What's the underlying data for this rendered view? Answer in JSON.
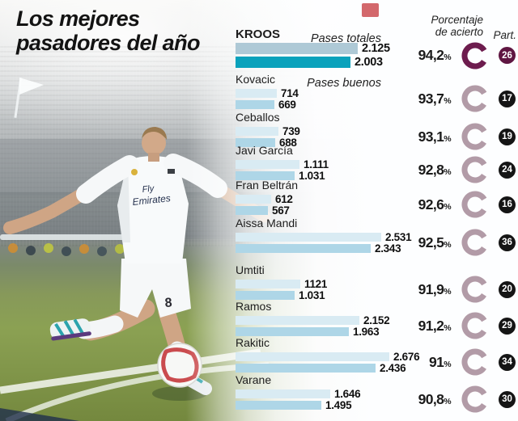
{
  "title": {
    "line1": "Los mejores",
    "line2": "pasadores del año"
  },
  "chart_headers": {
    "total_label": "Pases totales",
    "good_label": "Pases buenos",
    "accuracy_line1": "Porcentaje",
    "accuracy_line2": "de acierto",
    "participation_label": "Part.",
    "percent_sign": "%"
  },
  "photo": {
    "jersey_text_line1": "Fly",
    "jersey_text_line2": "Emirates",
    "shorts_number": "8"
  },
  "colors": {
    "bar_total": "#d9ebf3",
    "bar_good": "#aed6e7",
    "bar_total_highlight": "#aec9d6",
    "bar_good_highlight": "#0aa2bc",
    "ring_default": "#b29ba7",
    "ring_highlight": "#6d1c4e",
    "badge_default": "#151515",
    "badge_highlight": "#5f1642"
  },
  "chart_data": {
    "type": "bar",
    "orientation": "horizontal",
    "series_labels": [
      "Pases totales",
      "Pases buenos"
    ],
    "value_axis": "number of passes",
    "players": [
      {
        "name": "KROOS",
        "total": "2.125",
        "good": "2.003",
        "accuracy": "94,2",
        "matches": "26",
        "highlight": true
      },
      {
        "name": "Kovacic",
        "total": "714",
        "good": "669",
        "accuracy": "93,7",
        "matches": "17",
        "highlight": false
      },
      {
        "name": "Ceballos",
        "total": "739",
        "good": "688",
        "accuracy": "93,1",
        "matches": "19",
        "highlight": false
      },
      {
        "name": "Javi García",
        "total": "1.111",
        "good": "1.031",
        "accuracy": "92,8",
        "matches": "24",
        "highlight": false
      },
      {
        "name": "Fran Beltrán",
        "total": "612",
        "good": "567",
        "accuracy": "92,6",
        "matches": "16",
        "highlight": false
      },
      {
        "name": "Aissa Mandi",
        "total": "2.531",
        "good": "2.343",
        "accuracy": "92,5",
        "matches": "36",
        "highlight": false
      },
      {
        "name": "Umtiti",
        "total": "1121",
        "good": "1.031",
        "accuracy": "91,9",
        "matches": "20",
        "highlight": false
      },
      {
        "name": "Ramos",
        "total": "2.152",
        "good": "1.963",
        "accuracy": "91,2",
        "matches": "29",
        "highlight": false
      },
      {
        "name": "Rakitic",
        "total": "2.676",
        "good": "2.436",
        "accuracy": "91",
        "matches": "34",
        "highlight": false
      },
      {
        "name": "Varane",
        "total": "1.646",
        "good": "1.495",
        "accuracy": "90,8",
        "matches": "30",
        "highlight": false
      }
    ]
  }
}
